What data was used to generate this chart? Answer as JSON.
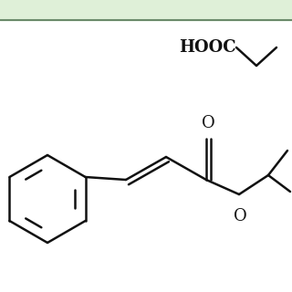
{
  "bg_top_color": "#dff0d8",
  "bg_main_color": "#ffffff",
  "border_color": "#6a8a6a",
  "line_color": "#111111",
  "line_width": 1.8,
  "hooc_text": "HOOC",
  "o_carbonyl": "O",
  "o_ester": "O"
}
